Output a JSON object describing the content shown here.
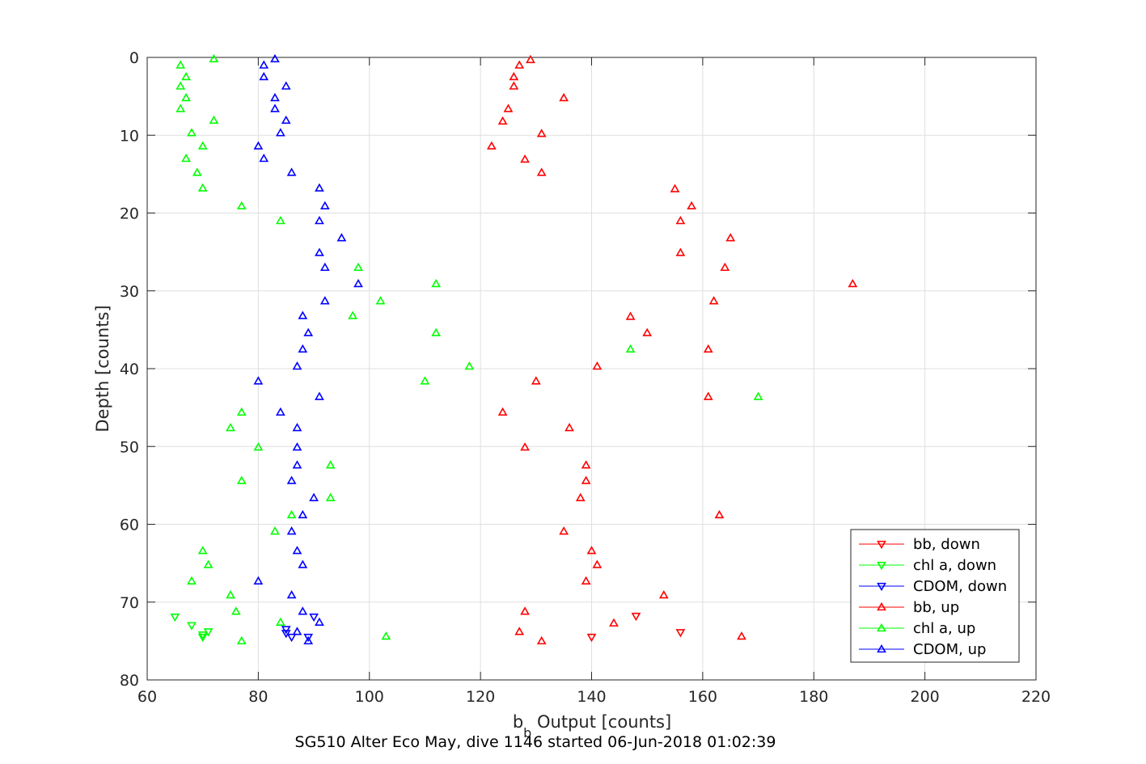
{
  "chart_data": {
    "type": "scatter",
    "xlabel": "b",
    "xlabel_subscript": "b",
    "xlabel_suffix": " Output [counts]",
    "ylabel": "Depth [counts]",
    "caption": "SG510 Alter Eco May, dive 1146 started 06-Jun-2018 01:02:39",
    "xlim": [
      60,
      220
    ],
    "ylim": [
      0,
      80
    ],
    "y_reversed": true,
    "xticks": [
      60,
      80,
      100,
      120,
      140,
      160,
      180,
      200,
      220
    ],
    "yticks": [
      0,
      10,
      20,
      30,
      40,
      50,
      60,
      70,
      80
    ],
    "grid": true,
    "legend_position": "bottom-right",
    "series": [
      {
        "name": "bb, down",
        "color": "#ff0000",
        "marker": "triangle-down",
        "points": [
          [
            148,
            71.8
          ],
          [
            156,
            73.9
          ],
          [
            140,
            74.5
          ]
        ]
      },
      {
        "name": "chl a, down",
        "color": "#00ff00",
        "marker": "triangle-down",
        "points": [
          [
            65,
            71.9
          ],
          [
            68,
            73.0
          ],
          [
            70,
            74.2
          ],
          [
            71,
            73.8
          ],
          [
            70,
            74.5
          ]
        ]
      },
      {
        "name": "CDOM, down",
        "color": "#0000ff",
        "marker": "triangle-down",
        "points": [
          [
            90,
            71.9
          ],
          [
            85,
            73.5
          ],
          [
            85,
            74.0
          ],
          [
            86,
            74.5
          ],
          [
            89,
            74.5
          ]
        ]
      },
      {
        "name": "bb, up",
        "color": "#ff0000",
        "marker": "triangle-up",
        "points": [
          [
            129,
            0.3
          ],
          [
            127,
            1.0
          ],
          [
            126,
            2.5
          ],
          [
            126,
            3.7
          ],
          [
            135,
            5.2
          ],
          [
            125,
            6.6
          ],
          [
            124,
            8.2
          ],
          [
            131,
            9.8
          ],
          [
            122,
            11.4
          ],
          [
            128,
            13.1
          ],
          [
            131,
            14.8
          ],
          [
            155,
            16.9
          ],
          [
            158,
            19.1
          ],
          [
            156,
            21.0
          ],
          [
            165,
            23.2
          ],
          [
            156,
            25.1
          ],
          [
            164,
            27.0
          ],
          [
            187,
            29.1
          ],
          [
            162,
            31.3
          ],
          [
            147,
            33.3
          ],
          [
            150,
            35.4
          ],
          [
            161,
            37.5
          ],
          [
            141,
            39.7
          ],
          [
            130,
            41.6
          ],
          [
            161,
            43.6
          ],
          [
            124,
            45.6
          ],
          [
            136,
            47.6
          ],
          [
            128,
            50.1
          ],
          [
            139,
            52.4
          ],
          [
            139,
            54.4
          ],
          [
            138,
            56.6
          ],
          [
            163,
            58.8
          ],
          [
            135,
            60.9
          ],
          [
            140,
            63.4
          ],
          [
            141,
            65.2
          ],
          [
            139,
            67.3
          ],
          [
            153,
            69.1
          ],
          [
            128,
            71.2
          ],
          [
            144,
            72.7
          ],
          [
            127,
            73.8
          ],
          [
            167,
            74.4
          ],
          [
            131,
            75.0
          ]
        ]
      },
      {
        "name": "chl a, up",
        "color": "#00ff00",
        "marker": "triangle-up",
        "points": [
          [
            72,
            0.2
          ],
          [
            66,
            1.0
          ],
          [
            67,
            2.5
          ],
          [
            66,
            3.7
          ],
          [
            67,
            5.2
          ],
          [
            66,
            6.6
          ],
          [
            72,
            8.1
          ],
          [
            68,
            9.7
          ],
          [
            70,
            11.4
          ],
          [
            67,
            13.0
          ],
          [
            69,
            14.8
          ],
          [
            70,
            16.8
          ],
          [
            77,
            19.1
          ],
          [
            84,
            21.0
          ],
          [
            98,
            27.0
          ],
          [
            112,
            29.1
          ],
          [
            102,
            31.3
          ],
          [
            97,
            33.2
          ],
          [
            112,
            35.4
          ],
          [
            147,
            37.5
          ],
          [
            118,
            39.7
          ],
          [
            110,
            41.6
          ],
          [
            170,
            43.6
          ],
          [
            77,
            45.6
          ],
          [
            75,
            47.6
          ],
          [
            80,
            50.1
          ],
          [
            93,
            52.4
          ],
          [
            77,
            54.4
          ],
          [
            93,
            56.6
          ],
          [
            86,
            58.8
          ],
          [
            83,
            60.9
          ],
          [
            70,
            63.4
          ],
          [
            71,
            65.2
          ],
          [
            68,
            67.3
          ],
          [
            75,
            69.1
          ],
          [
            76,
            71.2
          ],
          [
            84,
            72.6
          ],
          [
            103,
            74.4
          ],
          [
            77,
            75.0
          ]
        ]
      },
      {
        "name": "CDOM, up",
        "color": "#0000ff",
        "marker": "triangle-up",
        "points": [
          [
            83,
            0.2
          ],
          [
            81,
            1.0
          ],
          [
            81,
            2.5
          ],
          [
            85,
            3.7
          ],
          [
            83,
            5.2
          ],
          [
            83,
            6.6
          ],
          [
            85,
            8.1
          ],
          [
            84,
            9.7
          ],
          [
            80,
            11.4
          ],
          [
            81,
            13.0
          ],
          [
            86,
            14.8
          ],
          [
            91,
            16.8
          ],
          [
            92,
            19.1
          ],
          [
            91,
            21.0
          ],
          [
            95,
            23.2
          ],
          [
            91,
            25.1
          ],
          [
            92,
            27.0
          ],
          [
            98,
            29.1
          ],
          [
            92,
            31.3
          ],
          [
            88,
            33.2
          ],
          [
            89,
            35.4
          ],
          [
            88,
            37.5
          ],
          [
            87,
            39.7
          ],
          [
            80,
            41.6
          ],
          [
            91,
            43.6
          ],
          [
            84,
            45.6
          ],
          [
            87,
            47.6
          ],
          [
            87,
            50.1
          ],
          [
            87,
            52.4
          ],
          [
            86,
            54.4
          ],
          [
            90,
            56.6
          ],
          [
            88,
            58.8
          ],
          [
            86,
            60.9
          ],
          [
            87,
            63.4
          ],
          [
            88,
            65.2
          ],
          [
            80,
            67.3
          ],
          [
            86,
            69.1
          ],
          [
            88,
            71.2
          ],
          [
            91,
            72.6
          ],
          [
            87,
            73.8
          ],
          [
            89,
            75.0
          ]
        ]
      }
    ]
  }
}
